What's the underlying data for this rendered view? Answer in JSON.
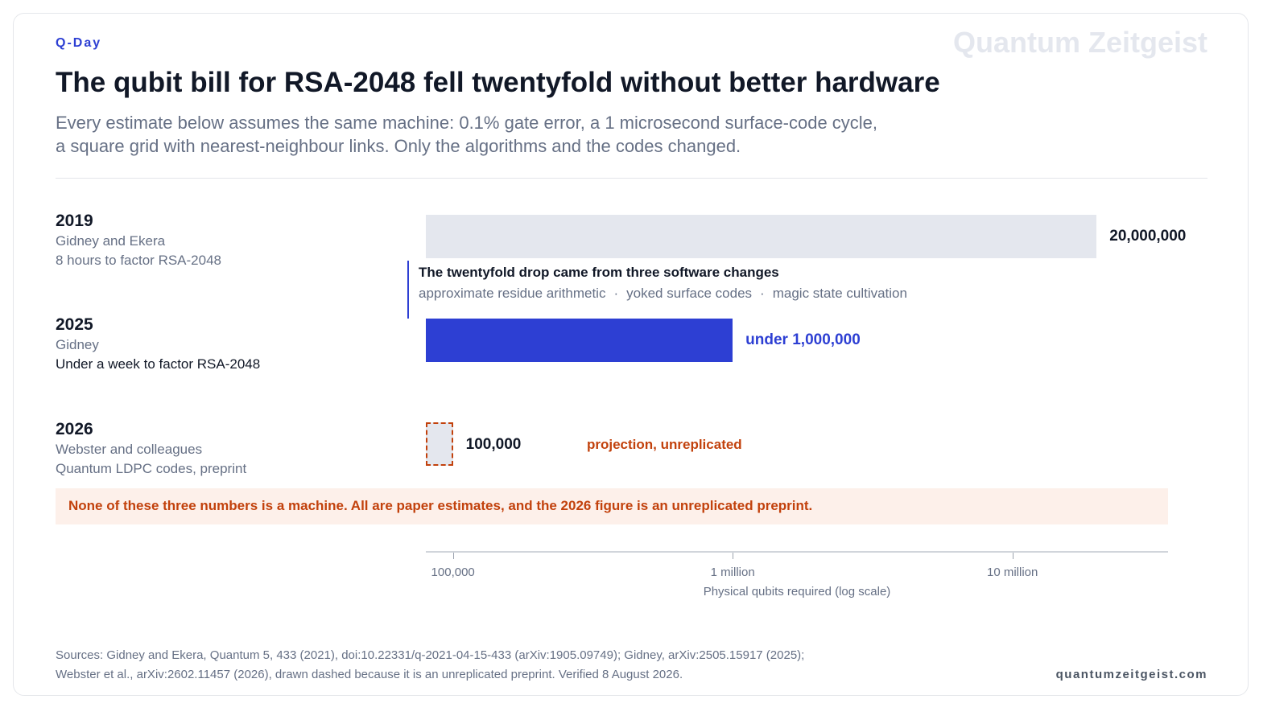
{
  "header": {
    "eyebrow": "Q-Day",
    "brand": "Quantum Zeitgeist",
    "title": "The qubit bill for RSA-2048 fell twentyfold without better hardware",
    "subtitle_line1": "Every estimate below assumes the same machine: 0.1% gate error, a 1 microsecond surface-code cycle,",
    "subtitle_line2": "a square grid with nearest-neighbour links. Only the algorithms and the codes changed."
  },
  "rows": [
    {
      "year": "2019",
      "line1": "Gidney and Ekera",
      "line2": "8 hours to factor RSA-2048",
      "value_label": "20,000,000"
    },
    {
      "year": "2025",
      "line1": "Gidney",
      "line2": "Under a week to factor RSA-2048",
      "value_label": "under 1,000,000"
    },
    {
      "year": "2026",
      "line1": "Webster and colleagues",
      "line2": "Quantum LDPC codes, preprint",
      "value_label": "100,000",
      "note": "projection, unreplicated"
    }
  ],
  "callout": {
    "title": "The twentyfold drop came from three software changes",
    "items": [
      "approximate residue arithmetic",
      "yoked surface codes",
      "magic state cultivation"
    ]
  },
  "warning": "None of these three numbers is a machine. All are paper estimates, and the 2026 figure is an unreplicated preprint.",
  "chart_data": {
    "type": "bar",
    "orientation": "horizontal",
    "scale": "log",
    "categories": [
      "2019",
      "2025",
      "2026"
    ],
    "values": [
      20000000,
      1000000,
      100000
    ],
    "xlim": [
      80000,
      36000000
    ],
    "ticks": [
      {
        "value": 100000,
        "label": "100,000"
      },
      {
        "value": 1000000,
        "label": "1 million"
      },
      {
        "value": 10000000,
        "label": "10 million"
      }
    ],
    "xlabel": "Physical qubits required (log scale)",
    "styles": [
      "gray",
      "accent",
      "dashed"
    ]
  },
  "colors": {
    "accent": "#2d3fd3",
    "gray_bar": "#e4e7ee",
    "warning": "#c2410c",
    "warning_bg": "#fdf0ea"
  },
  "footer": {
    "sources_line1": "Sources: Gidney and Ekera, Quantum 5, 433 (2021), doi:10.22331/q-2021-04-15-433 (arXiv:1905.09749); Gidney, arXiv:2505.15917 (2025);",
    "sources_line2": "Webster et al., arXiv:2602.11457 (2026), drawn dashed because it is an unreplicated preprint. Verified 8 August 2026.",
    "site": "quantumzeitgeist.com"
  }
}
